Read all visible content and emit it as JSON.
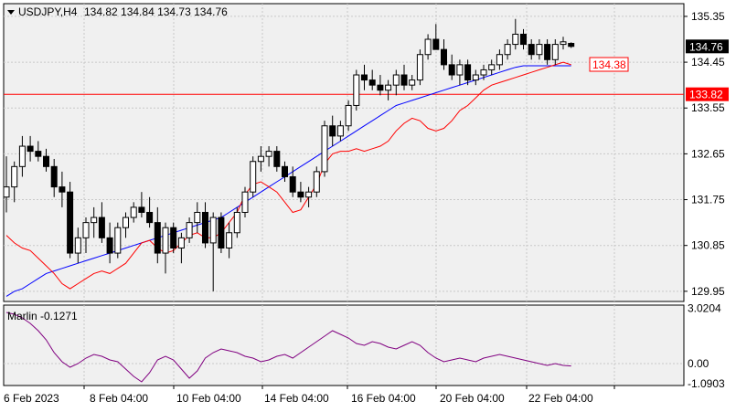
{
  "window": {
    "symbol_label": "USDJPY,H4",
    "ohlc_label": "134.82 134.84 134.73 134.76"
  },
  "indicator": {
    "name_label": "Marlin -0.1271",
    "ticks": [
      "3.0204",
      "0.00",
      "-1.0903"
    ]
  },
  "colors": {
    "background": "#ffffff",
    "plot_bg": "#f0f0f0",
    "grid": "#c8c8c8",
    "candle": "#000000",
    "ma_fast": "#ff0000",
    "ma_slow": "#0000ff",
    "level_line": "#ff0000",
    "oscillator": "#800080"
  },
  "price_axis": {
    "ticks": [
      "135.35",
      "134.45",
      "133.55",
      "132.65",
      "131.75",
      "130.85",
      "129.95"
    ]
  },
  "time_axis": {
    "ticks": [
      "6 Feb 2023",
      "8 Feb 04:00",
      "10 Feb 04:00",
      "14 Feb 04:00",
      "16 Feb 04:00",
      "20 Feb 04:00",
      "22 Feb 04:00"
    ]
  },
  "labels": {
    "current_price": "134.76",
    "ma_price": "134.38",
    "level_price": "133.82"
  },
  "chart_data": {
    "type": "candlestick",
    "ylim": [
      129.75,
      135.6
    ],
    "level_line": 133.82,
    "candles": [
      [
        131.8,
        132.6,
        131.5,
        132.0
      ],
      [
        132.0,
        132.5,
        131.7,
        132.4
      ],
      [
        132.4,
        133.0,
        132.2,
        132.8
      ],
      [
        132.8,
        133.0,
        132.5,
        132.7
      ],
      [
        132.7,
        132.9,
        132.5,
        132.6
      ],
      [
        132.6,
        132.75,
        132.3,
        132.4
      ],
      [
        132.4,
        132.55,
        131.8,
        132.0
      ],
      [
        132.0,
        132.3,
        131.6,
        131.9
      ],
      [
        131.9,
        132.1,
        130.6,
        130.7
      ],
      [
        130.7,
        131.2,
        130.5,
        131.0
      ],
      [
        131.0,
        131.4,
        130.7,
        131.3
      ],
      [
        131.3,
        131.6,
        131.0,
        131.4
      ],
      [
        131.4,
        131.7,
        130.9,
        131.0
      ],
      [
        131.0,
        131.3,
        130.5,
        130.7
      ],
      [
        130.7,
        131.3,
        130.6,
        131.2
      ],
      [
        131.2,
        131.5,
        131.0,
        131.4
      ],
      [
        131.4,
        131.7,
        131.3,
        131.6
      ],
      [
        131.6,
        131.9,
        131.4,
        131.5
      ],
      [
        131.5,
        131.8,
        131.2,
        131.3
      ],
      [
        131.3,
        131.6,
        130.5,
        130.7
      ],
      [
        130.7,
        131.3,
        130.3,
        131.2
      ],
      [
        131.2,
        131.3,
        130.7,
        130.8
      ],
      [
        130.8,
        131.1,
        130.5,
        131.0
      ],
      [
        131.0,
        131.4,
        130.9,
        131.3
      ],
      [
        131.3,
        131.7,
        131.1,
        131.5
      ],
      [
        131.5,
        131.7,
        130.8,
        130.9
      ],
      [
        130.9,
        131.5,
        129.95,
        131.4
      ],
      [
        131.4,
        131.5,
        130.7,
        130.8
      ],
      [
        130.8,
        131.3,
        130.6,
        131.1
      ],
      [
        131.1,
        131.6,
        131.0,
        131.5
      ],
      [
        131.5,
        132.0,
        131.4,
        131.9
      ],
      [
        131.9,
        132.6,
        131.8,
        132.5
      ],
      [
        132.5,
        132.8,
        132.3,
        132.6
      ],
      [
        132.6,
        132.8,
        132.4,
        132.7
      ],
      [
        132.7,
        132.8,
        132.3,
        132.4
      ],
      [
        132.4,
        132.5,
        132.1,
        132.2
      ],
      [
        132.2,
        132.4,
        131.8,
        131.9
      ],
      [
        131.9,
        132.1,
        131.7,
        131.8
      ],
      [
        131.8,
        132.0,
        131.6,
        131.9
      ],
      [
        131.9,
        132.4,
        131.8,
        132.3
      ],
      [
        132.3,
        133.3,
        132.2,
        133.2
      ],
      [
        133.2,
        133.4,
        132.8,
        133.0
      ],
      [
        133.0,
        133.3,
        132.9,
        133.2
      ],
      [
        133.2,
        133.7,
        133.1,
        133.6
      ],
      [
        133.6,
        134.3,
        133.5,
        134.2
      ],
      [
        134.2,
        134.4,
        133.9,
        134.1
      ],
      [
        134.1,
        134.3,
        133.9,
        134.0
      ],
      [
        134.0,
        134.2,
        133.8,
        133.9
      ],
      [
        133.9,
        134.1,
        133.7,
        134.0
      ],
      [
        134.0,
        134.3,
        133.8,
        134.2
      ],
      [
        134.2,
        134.4,
        133.9,
        134.0
      ],
      [
        134.0,
        134.2,
        133.9,
        134.1
      ],
      [
        134.1,
        134.7,
        134.0,
        134.6
      ],
      [
        134.6,
        135.0,
        134.5,
        134.9
      ],
      [
        134.9,
        135.2,
        134.7,
        134.7
      ],
      [
        134.7,
        134.9,
        134.3,
        134.4
      ],
      [
        134.4,
        134.6,
        134.1,
        134.2
      ],
      [
        134.2,
        134.5,
        134.0,
        134.4
      ],
      [
        134.4,
        134.5,
        134.0,
        134.1
      ],
      [
        134.1,
        134.3,
        134.0,
        134.2
      ],
      [
        134.2,
        134.4,
        134.1,
        134.3
      ],
      [
        134.3,
        134.5,
        134.2,
        134.4
      ],
      [
        134.4,
        134.7,
        134.3,
        134.6
      ],
      [
        134.6,
        134.9,
        134.5,
        134.8
      ],
      [
        134.8,
        135.3,
        134.7,
        135.0
      ],
      [
        135.0,
        135.1,
        134.7,
        134.8
      ],
      [
        134.8,
        134.9,
        134.5,
        134.6
      ],
      [
        134.6,
        134.9,
        134.5,
        134.8
      ],
      [
        134.8,
        134.9,
        134.4,
        134.5
      ],
      [
        134.5,
        134.9,
        134.4,
        134.8
      ],
      [
        134.8,
        134.95,
        134.7,
        134.85
      ],
      [
        134.82,
        134.84,
        134.73,
        134.76
      ]
    ],
    "ma_fast": [
      131.05,
      130.9,
      130.8,
      130.75,
      130.6,
      130.45,
      130.3,
      130.1,
      130.0,
      130.1,
      130.2,
      130.3,
      130.35,
      130.3,
      130.4,
      130.5,
      130.7,
      130.9,
      130.95,
      130.8,
      130.7,
      130.75,
      130.9,
      131.05,
      131.1,
      131.0,
      131.0,
      131.1,
      131.3,
      131.5,
      131.85,
      132.05,
      132.1,
      132.0,
      131.9,
      131.7,
      131.5,
      131.55,
      131.8,
      132.05,
      132.45,
      132.65,
      132.7,
      132.7,
      132.75,
      132.7,
      132.75,
      132.8,
      132.9,
      133.1,
      133.25,
      133.35,
      133.3,
      133.15,
      133.1,
      133.15,
      133.3,
      133.5,
      133.6,
      133.75,
      133.9,
      134.0,
      134.05,
      134.1,
      134.15,
      134.2,
      134.25,
      134.3,
      134.35,
      134.4,
      134.45,
      134.4
    ],
    "ma_slow": [
      129.85,
      129.95,
      130.0,
      130.1,
      130.2,
      130.3,
      130.35,
      130.4,
      130.45,
      130.5,
      130.55,
      130.6,
      130.65,
      130.7,
      130.75,
      130.8,
      130.85,
      130.9,
      130.95,
      131.0,
      131.05,
      131.1,
      131.15,
      131.2,
      131.25,
      131.3,
      131.35,
      131.4,
      131.5,
      131.6,
      131.7,
      131.8,
      131.9,
      132.0,
      132.1,
      132.2,
      132.3,
      132.4,
      132.5,
      132.6,
      132.7,
      132.8,
      132.9,
      133.0,
      133.1,
      133.2,
      133.3,
      133.4,
      133.5,
      133.6,
      133.65,
      133.7,
      133.75,
      133.8,
      133.85,
      133.9,
      133.95,
      134.0,
      134.05,
      134.1,
      134.15,
      134.2,
      134.25,
      134.3,
      134.35,
      134.38,
      134.38,
      134.38,
      134.38,
      134.38,
      134.38,
      134.38
    ],
    "oscillator": [
      2.8,
      2.7,
      2.5,
      2.2,
      1.8,
      1.3,
      0.6,
      0.1,
      -0.2,
      0.0,
      0.3,
      0.5,
      0.4,
      0.2,
      0.1,
      -0.3,
      -0.7,
      -1.0,
      -0.5,
      0.2,
      0.4,
      0.2,
      -0.3,
      -0.8,
      -0.4,
      0.3,
      0.6,
      0.8,
      0.7,
      0.6,
      0.4,
      0.3,
      0.1,
      0.2,
      0.4,
      0.5,
      0.3,
      0.6,
      0.9,
      1.2,
      1.5,
      1.8,
      1.6,
      1.4,
      1.1,
      1.0,
      1.2,
      1.1,
      0.9,
      0.8,
      1.0,
      1.2,
      1.0,
      0.6,
      0.3,
      0.1,
      0.2,
      0.3,
      0.2,
      0.1,
      0.3,
      0.4,
      0.5,
      0.4,
      0.3,
      0.2,
      0.1,
      0.0,
      -0.1,
      0.0,
      -0.1,
      -0.13
    ],
    "osc_ylim": [
      -1.2,
      3.2
    ]
  }
}
